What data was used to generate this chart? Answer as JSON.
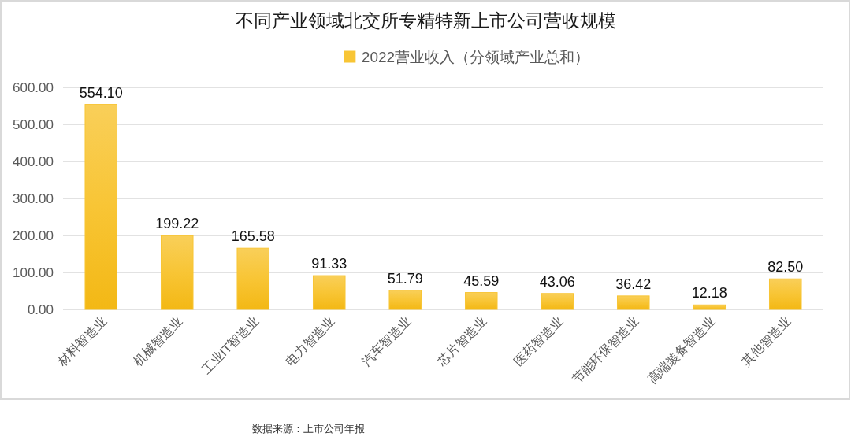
{
  "chart_data": {
    "type": "bar",
    "title": "不同产业领域北交所专精特新上市公司营收规模",
    "categories": [
      "材料智造业",
      "机械智造业",
      "工业IT智造业",
      "电力智造业",
      "汽车智造业",
      "芯片智造业",
      "医药智造业",
      "节能环保智造业",
      "高端装备智造业",
      "其他智造业"
    ],
    "series": [
      {
        "name": "2022营业收入（分领域产业总和）",
        "color": "#f8c535",
        "values": [
          554.1,
          199.22,
          165.58,
          91.33,
          51.79,
          45.59,
          43.06,
          36.42,
          12.18,
          82.5
        ],
        "value_labels": [
          "554.10",
          "199.22",
          "165.58",
          "91.33",
          "51.79",
          "45.59",
          "43.06",
          "36.42",
          "12.18",
          "82.50"
        ]
      }
    ],
    "ylim": [
      0,
      600
    ],
    "yticks": [
      {
        "value": 0,
        "label": "0.00"
      },
      {
        "value": 100,
        "label": "100.00"
      },
      {
        "value": 200,
        "label": "200.00"
      },
      {
        "value": 300,
        "label": "300.00"
      },
      {
        "value": 400,
        "label": "400.00"
      },
      {
        "value": 500,
        "label": "500.00"
      },
      {
        "value": 600,
        "label": "600.00"
      }
    ],
    "grid": "y",
    "legend": "top",
    "annotations": [
      "数据来源：上市公司年报"
    ]
  }
}
